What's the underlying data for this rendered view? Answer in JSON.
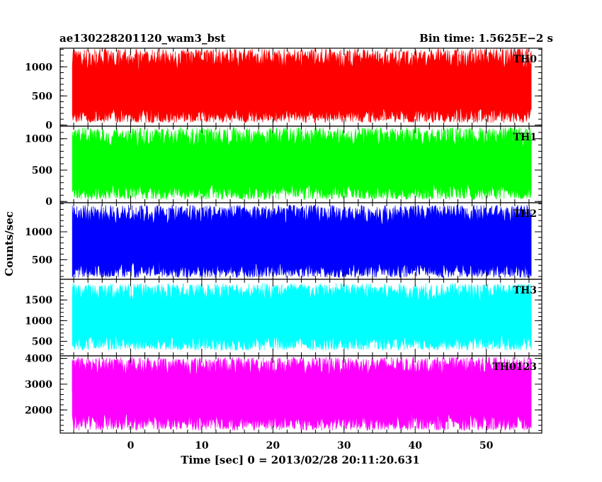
{
  "chart_data": {
    "type": "line",
    "title_left": "ae130228201120_wam3_bst",
    "title_right": "Bin time: 1.5625E−2 s",
    "xlabel": "Time [sec] 0 = 2013/02/28 20:11:20.631",
    "ylabel": "Counts/sec",
    "xlim": [
      -9.9,
      57.8
    ],
    "x_ticks": [
      0,
      10,
      20,
      30,
      40,
      50
    ],
    "data_x_range": [
      -8.2,
      56.4
    ],
    "bin_time_s": 0.015625,
    "grid": false,
    "panels": [
      {
        "name": "TH0",
        "color": "#ff0000",
        "ylim": [
          -20,
          1320
        ],
        "y_ticks": [
          0,
          500,
          1000
        ],
        "baseline": 620,
        "low": 40,
        "high": 1310
      },
      {
        "name": "TH1",
        "color": "#00ff00",
        "ylim": [
          -20,
          1200
        ],
        "y_ticks": [
          0,
          500,
          1000
        ],
        "baseline": 590,
        "low": 30,
        "high": 1180
      },
      {
        "name": "TH2",
        "color": "#0000ff",
        "ylim": [
          150,
          1520
        ],
        "y_ticks": [
          500,
          1000
        ],
        "baseline": 800,
        "low": 180,
        "high": 1480
      },
      {
        "name": "TH3",
        "color": "#00ffff",
        "ylim": [
          150,
          2000
        ],
        "y_ticks": [
          500,
          1000,
          1500
        ],
        "baseline": 1100,
        "low": 280,
        "high": 1900
      },
      {
        "name": "TH0123",
        "color": "#ff00ff",
        "ylim": [
          1100,
          4100
        ],
        "y_ticks": [
          2000,
          3000,
          4000
        ],
        "baseline": 2700,
        "low": 1200,
        "high": 4050
      }
    ]
  }
}
